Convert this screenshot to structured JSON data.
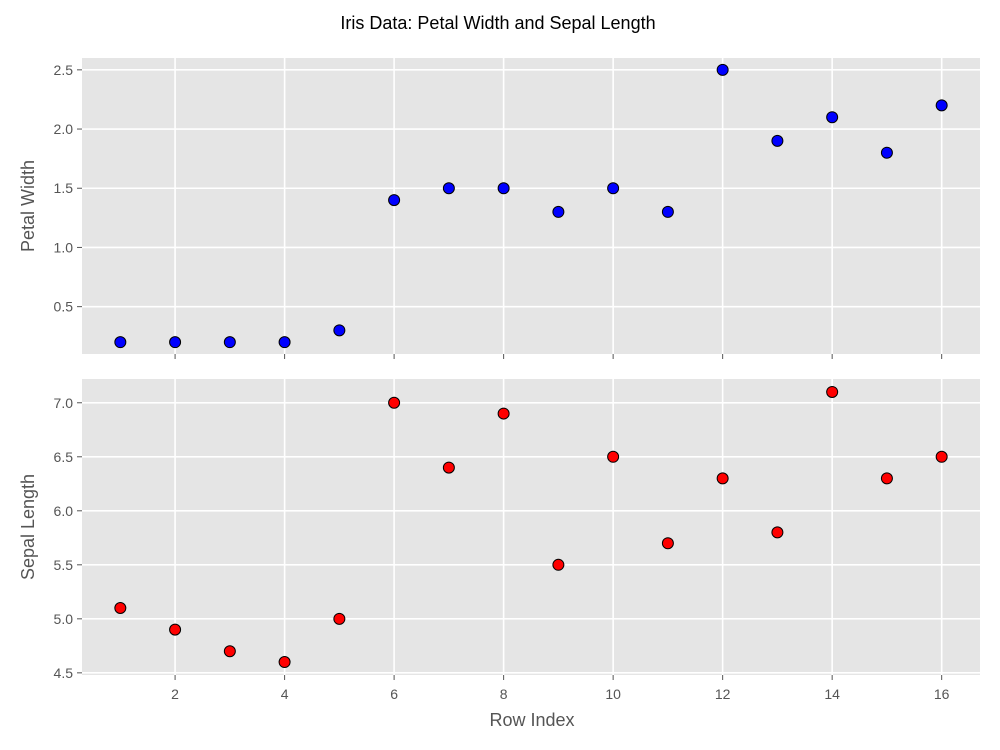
{
  "figure": {
    "title": "Iris Data: Petal Width and Sepal Length"
  },
  "theme": {
    "panel_background": "#E5E5E5",
    "grid_color": "#FFFFFF",
    "tick_color": "#555555",
    "marker_edge_color": "#000000"
  },
  "chart_data": [
    {
      "type": "scatter",
      "title": "",
      "xlabel": "",
      "ylabel": "Petal Width",
      "xlim": [
        0.3,
        16.7
      ],
      "ylim": [
        0.1,
        2.6
      ],
      "x_ticks": [
        2,
        4,
        6,
        8,
        10,
        12,
        14,
        16
      ],
      "x_tick_labels_visible": false,
      "y_ticks": [
        0.5,
        1.0,
        1.5,
        2.0,
        2.5
      ],
      "y_tick_labels": [
        "0.5",
        "1.0",
        "1.5",
        "2.0",
        "2.5"
      ],
      "grid": true,
      "marker_color": "#0000FF",
      "x": [
        1,
        2,
        3,
        4,
        5,
        6,
        7,
        8,
        9,
        10,
        11,
        12,
        13,
        14,
        15,
        16
      ],
      "y": [
        0.2,
        0.2,
        0.2,
        0.2,
        0.3,
        1.4,
        1.5,
        1.5,
        1.3,
        1.5,
        1.3,
        2.5,
        1.9,
        2.1,
        1.8,
        2.2
      ]
    },
    {
      "type": "scatter",
      "title": "",
      "xlabel": "Row Index",
      "ylabel": "Sepal Length",
      "xlim": [
        0.3,
        16.7
      ],
      "ylim": [
        4.48,
        7.22
      ],
      "x_ticks": [
        2,
        4,
        6,
        8,
        10,
        12,
        14,
        16
      ],
      "x_tick_labels": [
        "2",
        "4",
        "6",
        "8",
        "10",
        "12",
        "14",
        "16"
      ],
      "x_tick_labels_visible": true,
      "y_ticks": [
        4.5,
        5.0,
        5.5,
        6.0,
        6.5,
        7.0
      ],
      "y_tick_labels": [
        "4.5",
        "5.0",
        "5.5",
        "6.0",
        "6.5",
        "7.0"
      ],
      "grid": true,
      "marker_color": "#FF0000",
      "x": [
        1,
        2,
        3,
        4,
        5,
        6,
        7,
        8,
        9,
        10,
        11,
        12,
        13,
        14,
        15,
        16
      ],
      "y": [
        5.1,
        4.9,
        4.7,
        4.6,
        5.0,
        7.0,
        6.4,
        6.9,
        5.5,
        6.5,
        5.7,
        6.3,
        5.8,
        7.1,
        6.3,
        6.5
      ]
    }
  ]
}
